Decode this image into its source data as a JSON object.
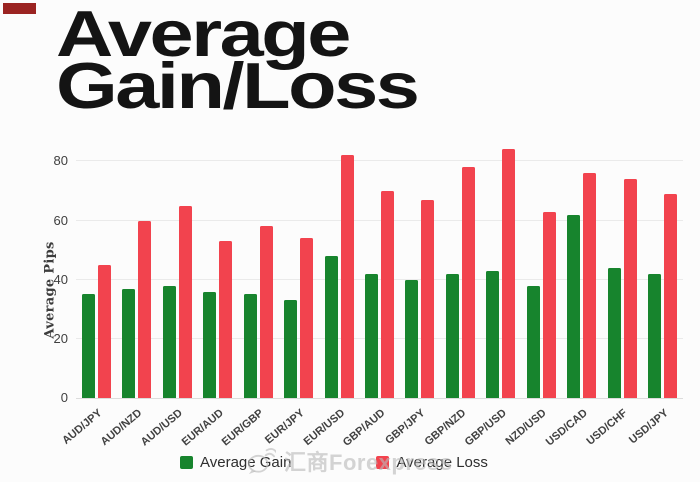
{
  "title": {
    "line1": "Average",
    "line2": "Gain/Loss"
  },
  "corner_mark": {
    "color": "#9b2422"
  },
  "watermark": {
    "logo": "speech-bubble-waves-icon",
    "text": "汇商Forexpress"
  },
  "chart_data": {
    "type": "bar",
    "title": "Average Gain/Loss",
    "xlabel": "",
    "ylabel": "Average Pips",
    "categories": [
      "AUD/JPY",
      "AUD/NZD",
      "AUD/USD",
      "EUR/AUD",
      "EUR/GBP",
      "EUR/JPY",
      "EUR/USD",
      "GBP/AUD",
      "GBP/JPY",
      "GBP/NZD",
      "GBP/USD",
      "NZD/USD",
      "USD/CAD",
      "USD/CHF",
      "USD/JPY"
    ],
    "series": [
      {
        "name": "Average Gain",
        "color": "#17842d",
        "values": [
          35,
          37,
          38,
          36,
          35,
          33,
          48,
          42,
          40,
          42,
          43,
          38,
          62,
          44,
          42
        ]
      },
      {
        "name": "Average Loss",
        "color": "#f2434e",
        "values": [
          45,
          60,
          65,
          53,
          58,
          54,
          82,
          70,
          67,
          78,
          84,
          63,
          76,
          74,
          69
        ]
      }
    ],
    "ylim": [
      0,
      84.5
    ],
    "yticks": [
      0,
      20,
      40,
      60,
      80
    ],
    "grid": true,
    "legend_position": "bottom"
  }
}
